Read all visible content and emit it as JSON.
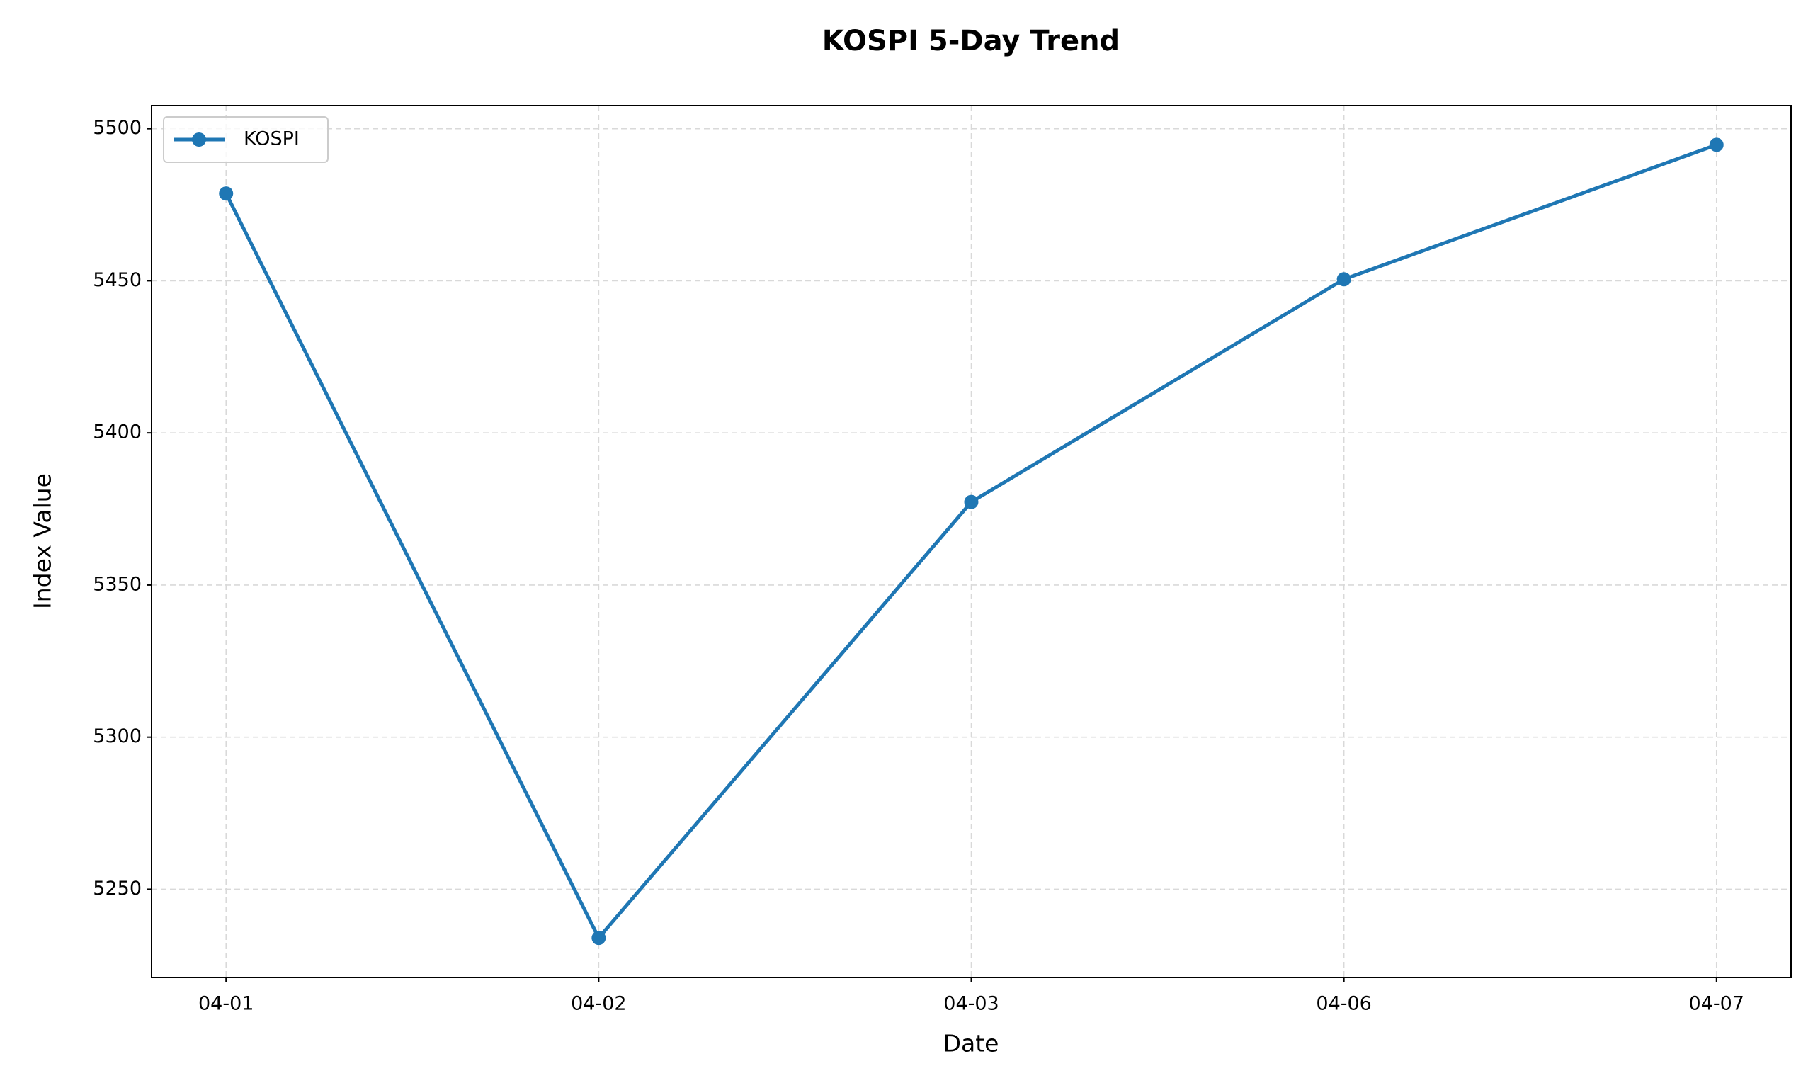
{
  "chart_data": {
    "type": "line",
    "title": "KOSPI 5-Day Trend",
    "x_label": "Date",
    "y_label": "Index Value",
    "categories": [
      "04-01",
      "04-02",
      "04-03",
      "04-06",
      "04-07"
    ],
    "series": [
      {
        "name": "KOSPI",
        "color": "#1f77b4",
        "values": [
          5478.7,
          5234.0,
          5377.3,
          5450.5,
          5494.7
        ]
      }
    ],
    "ylim": [
      5221,
      5507.6
    ],
    "yticks": [
      5250,
      5300,
      5350,
      5400,
      5450,
      5500
    ],
    "grid": true,
    "legend": "upper left"
  }
}
